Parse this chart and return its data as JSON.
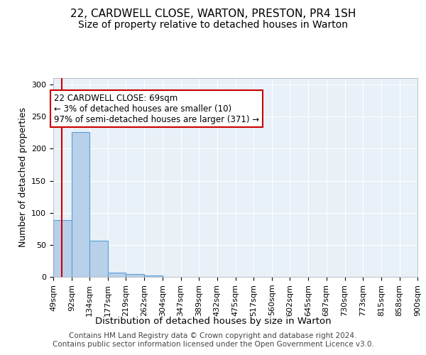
{
  "title": "22, CARDWELL CLOSE, WARTON, PRESTON, PR4 1SH",
  "subtitle": "Size of property relative to detached houses in Warton",
  "xlabel": "Distribution of detached houses by size in Warton",
  "ylabel": "Number of detached properties",
  "bin_edges": [
    49,
    92,
    134,
    177,
    219,
    262,
    304,
    347,
    389,
    432,
    475,
    517,
    560,
    602,
    645,
    687,
    730,
    773,
    815,
    858,
    900
  ],
  "bar_heights": [
    89,
    226,
    57,
    7,
    4,
    2,
    0,
    0,
    0,
    0,
    0,
    0,
    0,
    0,
    0,
    0,
    0,
    0,
    0,
    0
  ],
  "bar_color": "#b8d0ea",
  "bar_edge_color": "#5a9fd4",
  "bar_linewidth": 0.8,
  "red_line_x": 69,
  "red_line_color": "#cc0000",
  "annotation_line1": "22 CARDWELL CLOSE: 69sqm",
  "annotation_line2": "← 3% of detached houses are smaller (10)",
  "annotation_line3": "97% of semi-detached houses are larger (371) →",
  "annotation_box_color": "#ffffff",
  "annotation_box_edge": "#cc0000",
  "ylim": [
    0,
    310
  ],
  "yticks": [
    0,
    50,
    100,
    150,
    200,
    250,
    300
  ],
  "background_color": "#e8f0f8",
  "footer_line1": "Contains HM Land Registry data © Crown copyright and database right 2024.",
  "footer_line2": "Contains public sector information licensed under the Open Government Licence v3.0.",
  "title_fontsize": 11,
  "subtitle_fontsize": 10,
  "xlabel_fontsize": 9.5,
  "ylabel_fontsize": 9,
  "tick_fontsize": 8,
  "footer_fontsize": 7.5,
  "annotation_fontsize": 8.5
}
